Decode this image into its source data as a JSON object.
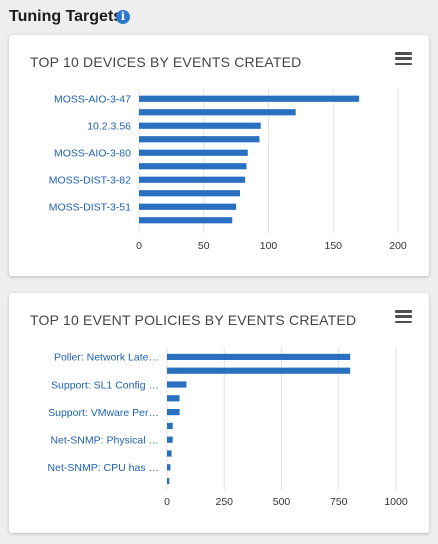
{
  "page": {
    "title": "Tuning Targets",
    "info_icon": "info-icon"
  },
  "colors": {
    "bar": "#2a70c0",
    "link_text": "#1f62b0",
    "grid": "#e3e3e3"
  },
  "chart_data": [
    {
      "type": "bar",
      "orientation": "horizontal",
      "title": "TOP 10 DEVICES BY EVENTS CREATED",
      "categories": [
        "MOSS-AIO-3-47",
        "",
        "10.2.3.56",
        "",
        "MOSS-AIO-3-80",
        "",
        "MOSS-DIST-3-82",
        "",
        "MOSS-DIST-3-51",
        ""
      ],
      "values": [
        170,
        121,
        94,
        93,
        84,
        83,
        82,
        78,
        75,
        72
      ],
      "xlim": [
        0,
        200
      ],
      "xticks": [
        "0",
        "50",
        "100",
        "150",
        "200"
      ],
      "grid": true
    },
    {
      "type": "bar",
      "orientation": "horizontal",
      "title": "TOP 10 EVENT POLICIES BY EVENTS CREATED",
      "categories": [
        "Poller: Network Late…",
        "",
        "Support: SL1 Config …",
        "",
        "Support: VMware Per…",
        "",
        "Net-SNMP: Physical …",
        "",
        "Net-SNMP: CPU has …",
        ""
      ],
      "values": [
        800,
        800,
        85,
        55,
        55,
        25,
        25,
        20,
        15,
        10
      ],
      "xlim": [
        0,
        1000
      ],
      "xticks": [
        "0",
        "250",
        "500",
        "750",
        "1000"
      ],
      "grid": true
    }
  ]
}
